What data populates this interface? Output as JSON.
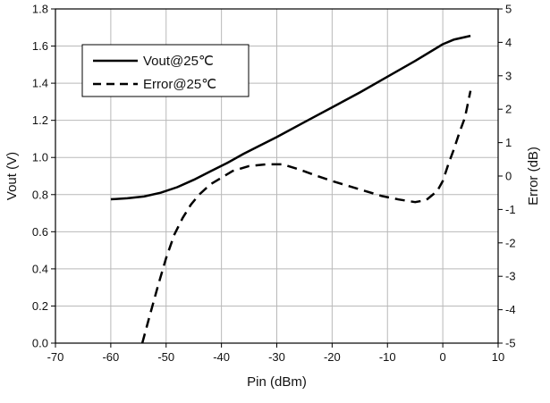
{
  "chart_data": {
    "type": "line",
    "xlabel": "Pin (dBm)",
    "ylabel": "Vout (V)",
    "y2label": "Error (dB)",
    "xlim": [
      -70,
      10
    ],
    "ylim": [
      0,
      1.8
    ],
    "y2lim": [
      -5,
      5
    ],
    "xticks": [
      "-70",
      "-60",
      "-50",
      "-40",
      "-30",
      "-20",
      "-10",
      "0",
      "10"
    ],
    "yticks": [
      "0.0",
      "0.2",
      "0.4",
      "0.6",
      "0.8",
      "1.0",
      "1.2",
      "1.4",
      "1.6",
      "1.8"
    ],
    "y2ticks": [
      "-5",
      "-4",
      "-3",
      "-2",
      "-1",
      "0",
      "1",
      "2",
      "3",
      "4",
      "5"
    ],
    "grid": true,
    "legend_position": "top-left",
    "series": [
      {
        "name": "Vout@25℃",
        "axis": "left",
        "style": "solid",
        "color": "#000000",
        "x": [
          -60,
          -57,
          -54,
          -51,
          -48,
          -45,
          -42,
          -39,
          -36,
          -33,
          -30,
          -25,
          -20,
          -15,
          -10,
          -5,
          0,
          2,
          5
        ],
        "y": [
          0.775,
          0.78,
          0.79,
          0.81,
          0.84,
          0.88,
          0.925,
          0.97,
          1.02,
          1.065,
          1.11,
          1.19,
          1.27,
          1.35,
          1.435,
          1.52,
          1.61,
          1.635,
          1.655
        ]
      },
      {
        "name": "Error@25℃",
        "axis": "right",
        "style": "dashed",
        "color": "#000000",
        "x": [
          -54.3,
          -53,
          -51.5,
          -50,
          -48.5,
          -47,
          -45.5,
          -44,
          -42,
          -40,
          -38,
          -35,
          -32,
          -29,
          -26,
          -23,
          -20,
          -17,
          -14,
          -11,
          -8,
          -5,
          -3,
          -1,
          0,
          1,
          2,
          3,
          4,
          5
        ],
        "y": [
          -5.0,
          -4.2,
          -3.3,
          -2.45,
          -1.75,
          -1.25,
          -0.85,
          -0.55,
          -0.25,
          -0.05,
          0.15,
          0.3,
          0.35,
          0.35,
          0.2,
          0.02,
          -0.15,
          -0.3,
          -0.45,
          -0.6,
          -0.7,
          -0.78,
          -0.72,
          -0.45,
          -0.15,
          0.35,
          0.8,
          1.3,
          1.75,
          2.55
        ]
      }
    ]
  }
}
